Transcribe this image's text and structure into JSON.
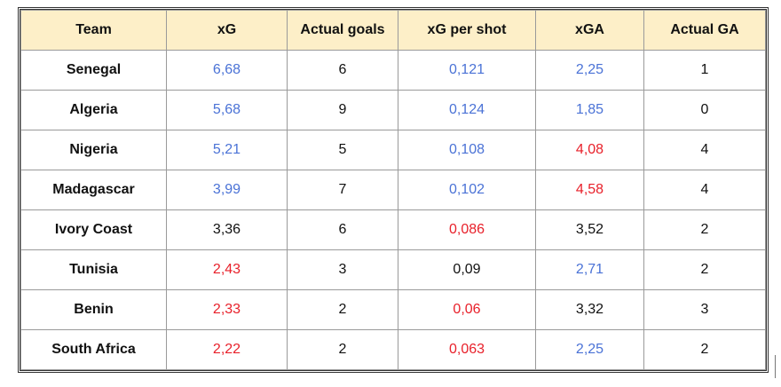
{
  "table": {
    "header": [
      "Team",
      "xG",
      "Actual goals",
      "xG per shot",
      "xGA",
      "Actual GA"
    ],
    "rows": [
      [
        "Senegal",
        "6,68",
        "6",
        "0,121",
        "2,25",
        "1"
      ],
      [
        "Algeria",
        "5,68",
        "9",
        "0,124",
        "1,85",
        "0"
      ],
      [
        "Nigeria",
        "5,21",
        "5",
        "0,108",
        "4,08",
        "4"
      ],
      [
        "Madagascar",
        "3,99",
        "7",
        "0,102",
        "4,58",
        "4"
      ],
      [
        "Ivory Coast",
        "3,36",
        "6",
        "0,086",
        "3,52",
        "2"
      ],
      [
        "Tunisia",
        "2,43",
        "3",
        "0,09",
        "2,71",
        "2"
      ],
      [
        "Benin",
        "2,33",
        "2",
        "0,06",
        "3,32",
        "3"
      ],
      [
        "South Africa",
        "2,22",
        "2",
        "0,063",
        "2,25",
        "2"
      ]
    ],
    "colors": [
      [
        "#111111",
        "#4a72d6",
        "#111111",
        "#4a72d6",
        "#4a72d6",
        "#111111"
      ],
      [
        "#111111",
        "#4a72d6",
        "#111111",
        "#4a72d6",
        "#4a72d6",
        "#111111"
      ],
      [
        "#111111",
        "#4a72d6",
        "#111111",
        "#4a72d6",
        "#e8202a",
        "#111111"
      ],
      [
        "#111111",
        "#4a72d6",
        "#111111",
        "#4a72d6",
        "#e8202a",
        "#111111"
      ],
      [
        "#111111",
        "#111111",
        "#111111",
        "#e8202a",
        "#111111",
        "#111111"
      ],
      [
        "#111111",
        "#e8202a",
        "#111111",
        "#111111",
        "#4a72d6",
        "#111111"
      ],
      [
        "#111111",
        "#e8202a",
        "#111111",
        "#e8202a",
        "#111111",
        "#111111"
      ],
      [
        "#111111",
        "#e8202a",
        "#111111",
        "#e8202a",
        "#4a72d6",
        "#111111"
      ]
    ]
  }
}
